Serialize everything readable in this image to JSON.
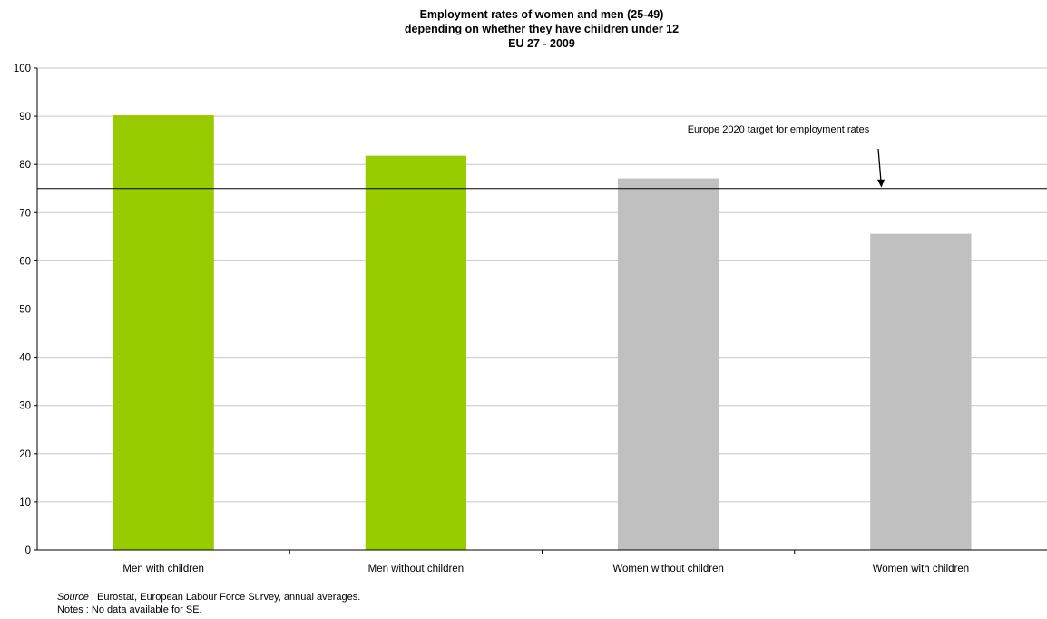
{
  "chart_data": {
    "type": "bar",
    "title_lines": [
      "Employment rates of women and men (25-49)",
      "depending on whether they have children under 12",
      "EU 27 - 2009"
    ],
    "categories": [
      "Men with children",
      "Men without children",
      "Women without children",
      "Women with children"
    ],
    "values": [
      90.2,
      81.8,
      77.1,
      65.6
    ],
    "bar_colors": [
      "#99cc00",
      "#99cc00",
      "#c0c0c0",
      "#c0c0c0"
    ],
    "ylim": [
      0,
      100
    ],
    "yticks": [
      0,
      10,
      20,
      30,
      40,
      50,
      60,
      70,
      80,
      90,
      100
    ],
    "grid": true,
    "reference_line": {
      "value": 75,
      "label": "Europe 2020 target for employment rates"
    }
  },
  "footnotes": {
    "source_label": "Source",
    "source_text": " : Eurostat, European Labour Force Survey, annual averages.",
    "notes_text": "Notes : No data available for SE."
  }
}
